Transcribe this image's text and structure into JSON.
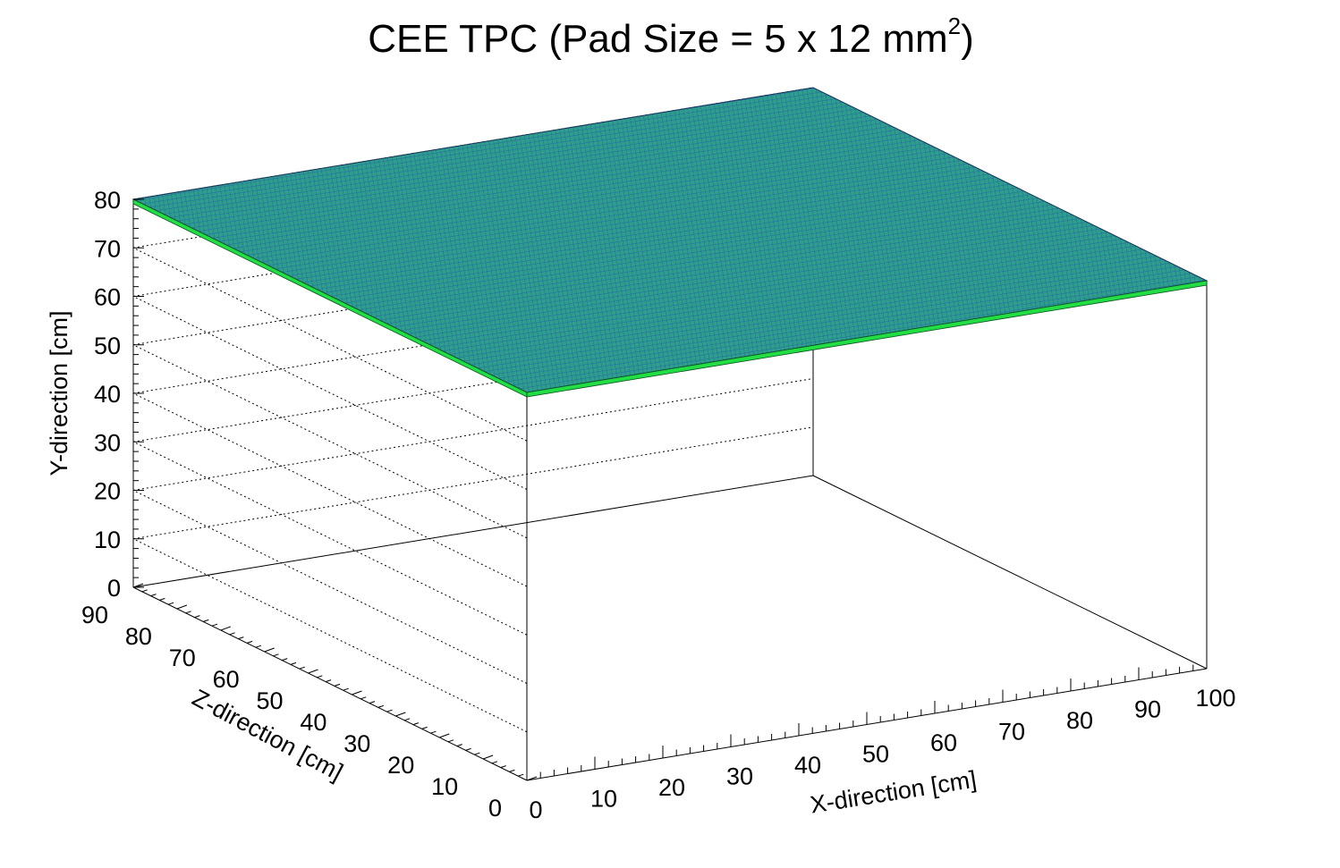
{
  "chart_data": {
    "type": "surface3d",
    "title": {
      "main": "CEE TPC (Pad Size = 5 x 12 mm",
      "superscript": "2",
      "close": ")"
    },
    "xlabel": "X-direction [cm]",
    "ylabel": "Y-direction [cm]",
    "zlabel": "Z-direction [cm]",
    "xlim": [
      0,
      100
    ],
    "ylim": [
      0,
      80
    ],
    "zlim": [
      0,
      90
    ],
    "x_ticks": [
      "0",
      "10",
      "20",
      "30",
      "40",
      "50",
      "60",
      "70",
      "80",
      "90",
      "100"
    ],
    "y_ticks": [
      "0",
      "10",
      "20",
      "30",
      "40",
      "50",
      "60",
      "70",
      "80"
    ],
    "z_ticks": [
      "0",
      "10",
      "20",
      "30",
      "40",
      "50",
      "60",
      "70",
      "80",
      "90"
    ],
    "grid": true,
    "surface": {
      "y_value": 80,
      "x_range": [
        0,
        100
      ],
      "z_range": [
        0,
        90
      ],
      "fill_color": "#2e9e8a",
      "mesh_color": "#1a3fc4",
      "edge_color": "#22dd44"
    }
  }
}
